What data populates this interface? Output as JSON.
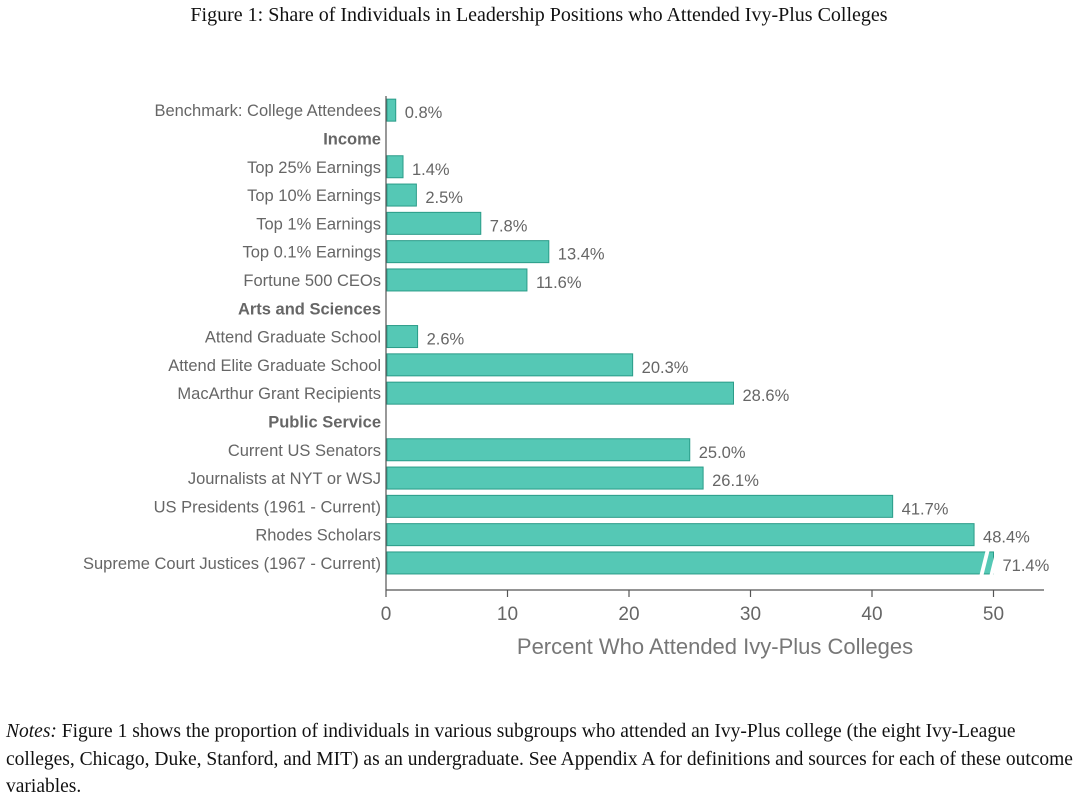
{
  "title": "Figure 1: Share of Individuals in Leadership Positions who Attended Ivy-Plus Colleges",
  "notes": {
    "label": "Notes:",
    "text": " Figure 1 shows the proportion of individuals in various subgroups who attended an Ivy-Plus college (the eight Ivy-League colleges, Chicago, Duke, Stanford, and MIT) as an undergraduate. See Appendix A for definitions and sources for each of these outcome variables."
  },
  "colors": {
    "bar_fill": "#55c8b5",
    "bar_stroke": "#2a9c88",
    "axis": "#555555",
    "text": "#666666"
  },
  "chart_data": {
    "type": "bar",
    "orientation": "horizontal",
    "xlabel": "Percent Who Attended Ivy-Plus Colleges",
    "ylabel": "",
    "xlim": [
      0,
      54
    ],
    "xticks": [
      0,
      10,
      20,
      30,
      40,
      50
    ],
    "grid": false,
    "rows": [
      {
        "label": "Benchmark: College Attendees",
        "value": 0.8,
        "display": "0.8%"
      },
      {
        "label": "Income",
        "header": true
      },
      {
        "label": "Top 25% Earnings",
        "value": 1.4,
        "display": "1.4%"
      },
      {
        "label": "Top 10% Earnings",
        "value": 2.5,
        "display": "2.5%"
      },
      {
        "label": "Top 1% Earnings",
        "value": 7.8,
        "display": "7.8%"
      },
      {
        "label": "Top 0.1% Earnings",
        "value": 13.4,
        "display": "13.4%"
      },
      {
        "label": "Fortune 500 CEOs",
        "value": 11.6,
        "display": "11.6%"
      },
      {
        "label": "Arts and Sciences",
        "header": true
      },
      {
        "label": "Attend Graduate School",
        "value": 2.6,
        "display": "2.6%"
      },
      {
        "label": "Attend Elite Graduate School",
        "value": 20.3,
        "display": "20.3%"
      },
      {
        "label": "MacArthur Grant Recipients",
        "value": 28.6,
        "display": "28.6%"
      },
      {
        "label": "Public Service",
        "header": true
      },
      {
        "label": "Current US Senators",
        "value": 25.0,
        "display": "25.0%"
      },
      {
        "label": "Journalists at NYT or WSJ",
        "value": 26.1,
        "display": "26.1%"
      },
      {
        "label": "US Presidents (1961 - Current)",
        "value": 41.7,
        "display": "41.7%"
      },
      {
        "label": "Rhodes Scholars",
        "value": 48.4,
        "display": "48.4%"
      },
      {
        "label": "Supreme Court Justices (1967 - Current)",
        "value": 71.4,
        "display": "71.4%",
        "axis_break": true,
        "drawn_value": 50
      }
    ]
  }
}
